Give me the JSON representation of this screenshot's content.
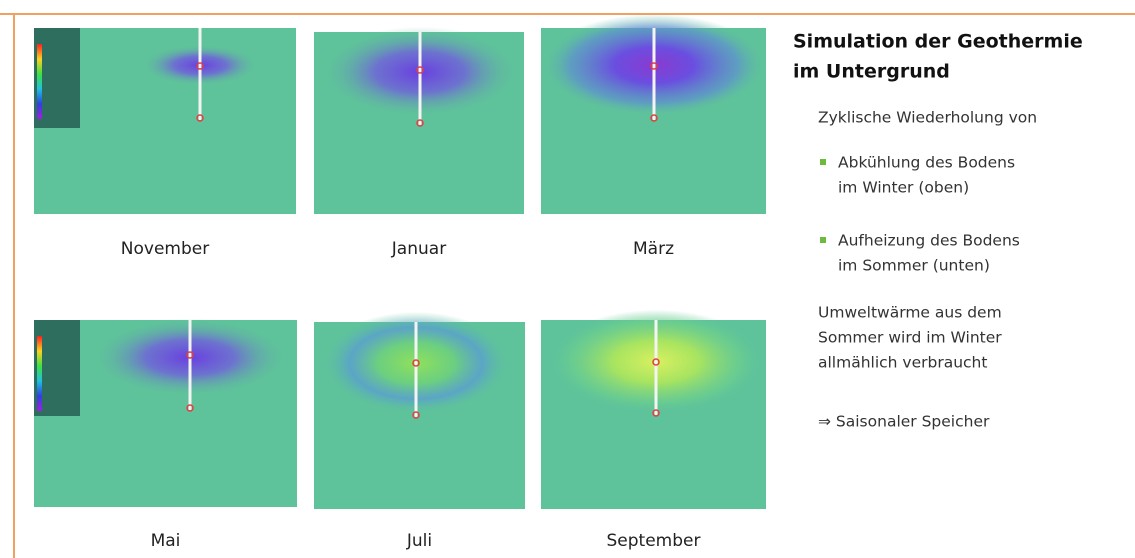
{
  "title": [
    "Simulation der Geothermie",
    "im Untergrund"
  ],
  "intro": "Zyklische Wiederholung von",
  "bullets": [
    [
      "Abkühlung des Bodens",
      "im Winter (oben)"
    ],
    [
      "Aufheizung des Bodens",
      "im Sommer (unten)"
    ]
  ],
  "paragraph": [
    "Umweltwärme aus dem",
    "Sommer wird im Winter",
    "allmählich verbraucht"
  ],
  "conclusion": "⇒ Saisonaler Speicher",
  "panels": [
    {
      "label": "November"
    },
    {
      "label": "Januar"
    },
    {
      "label": "März"
    },
    {
      "label": "Mai"
    },
    {
      "label": "Juli"
    },
    {
      "label": "September"
    }
  ]
}
